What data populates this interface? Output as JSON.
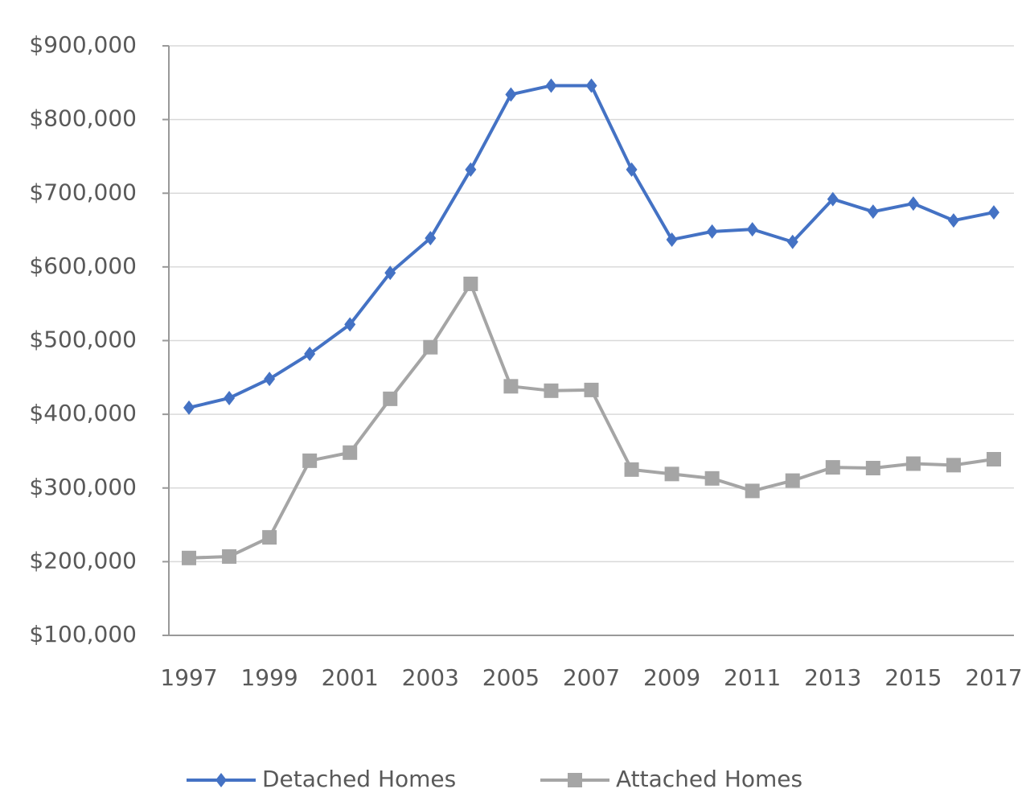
{
  "chart_data": {
    "type": "line",
    "x": [
      1997,
      1998,
      1999,
      2000,
      2001,
      2002,
      2003,
      2004,
      2005,
      2006,
      2007,
      2008,
      2009,
      2010,
      2011,
      2012,
      2013,
      2014,
      2015,
      2016,
      2017
    ],
    "xlim": [
      1996.5,
      2017.5
    ],
    "xticks": [
      1997,
      1999,
      2001,
      2003,
      2005,
      2007,
      2009,
      2011,
      2013,
      2015,
      2017
    ],
    "ylim": [
      100000,
      900000
    ],
    "yticks": [
      {
        "value": 100000,
        "label": "$100,000"
      },
      {
        "value": 200000,
        "label": "$200,000"
      },
      {
        "value": 300000,
        "label": "$300,000"
      },
      {
        "value": 400000,
        "label": "$400,000"
      },
      {
        "value": 500000,
        "label": "$500,000"
      },
      {
        "value": 600000,
        "label": "$600,000"
      },
      {
        "value": 700000,
        "label": "$700,000"
      },
      {
        "value": 800000,
        "label": "$800,000"
      },
      {
        "value": 900000,
        "label": "$900,000"
      }
    ],
    "grid": true,
    "legend": "bottom",
    "series": [
      {
        "name": "Detached Homes",
        "color": "#4472c4",
        "marker": "diamond",
        "values": [
          409000,
          422000,
          448000,
          482000,
          522000,
          592000,
          639000,
          732000,
          834000,
          846000,
          846000,
          732000,
          637000,
          648000,
          651000,
          634000,
          692000,
          675000,
          686000,
          663000,
          674000
        ]
      },
      {
        "name": "Attached Homes",
        "color": "#a5a5a5",
        "marker": "square",
        "values": [
          205000,
          207000,
          233000,
          337000,
          348000,
          421000,
          491000,
          577000,
          438000,
          432000,
          433000,
          325000,
          319000,
          313000,
          296000,
          310000,
          328000,
          327000,
          333000,
          331000,
          339000
        ]
      }
    ]
  }
}
